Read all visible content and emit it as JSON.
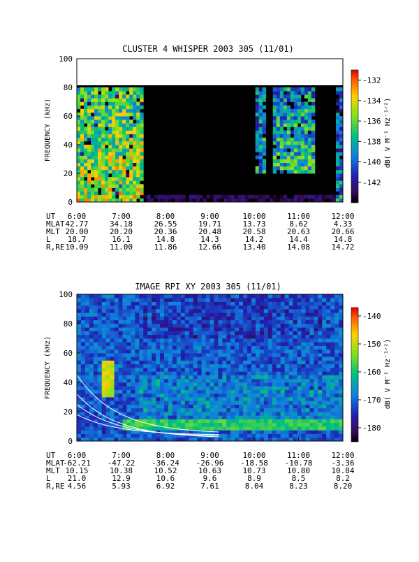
{
  "panels": [
    {
      "title": "CLUSTER 4 WHISPER 2003 305 (11/01)",
      "ylabel": "FREQUENCY (kHz)",
      "cbar_label": "dB( V M⁻¹ Hz⁻¹ᐟ²)",
      "cbar_ticks": [
        "-132",
        "-134",
        "-136",
        "-138",
        "-140",
        "-142"
      ],
      "y_ticks": [
        "0",
        "20",
        "40",
        "60",
        "80",
        "100"
      ],
      "ephemeris": {
        "rows": [
          {
            "label": "UT",
            "values": [
              "6:00",
              "7:00",
              "8:00",
              "9:00",
              "10:00",
              "11:00",
              "12:00"
            ]
          },
          {
            "label": "MLAT",
            "values": [
              "42.77",
              "34.18",
              "26.55",
              "19.71",
              "13.73",
              "8.62",
              "4.33"
            ]
          },
          {
            "label": "MLT",
            "values": [
              "20.00",
              "20.20",
              "20.36",
              "20.48",
              "20.58",
              "20.63",
              "20.66"
            ]
          },
          {
            "label": "L",
            "values": [
              "18.7",
              "16.1",
              "14.8",
              "14.3",
              "14.2",
              "14.4",
              "14.8"
            ]
          },
          {
            "label": "R,RE",
            "values": [
              "10.09",
              "11.00",
              "11.86",
              "12.66",
              "13.40",
              "14.08",
              "14.72"
            ]
          }
        ]
      }
    },
    {
      "title": "IMAGE RPI XY 2003 305 (11/01)",
      "ylabel": "FREQUENCY (kHz)",
      "cbar_label": "dB( V M⁻¹ Hz⁻¹ᐟ²)",
      "cbar_ticks": [
        "-140",
        "-150",
        "-160",
        "-170",
        "-180"
      ],
      "y_ticks": [
        "0",
        "20",
        "40",
        "60",
        "80",
        "100"
      ],
      "ephemeris": {
        "rows": [
          {
            "label": "UT",
            "values": [
              "6:00",
              "7:00",
              "8:00",
              "9:00",
              "10:00",
              "11:00",
              "12:00"
            ]
          },
          {
            "label": "MLAT",
            "values": [
              "-62.21",
              "-47.22",
              "-36.24",
              "-26.96",
              "-18.58",
              "-10.78",
              "-3.36"
            ]
          },
          {
            "label": "MLT",
            "values": [
              "10.15",
              "10.38",
              "10.52",
              "10.63",
              "10.73",
              "10.80",
              "10.84"
            ]
          },
          {
            "label": "L",
            "values": [
              "21.0",
              "12.9",
              "10.6",
              "9.6",
              "8.9",
              "8.5",
              "8.2"
            ]
          },
          {
            "label": "R,RE",
            "values": [
              "4.56",
              "5.93",
              "6.92",
              "7.61",
              "8.04",
              "8.23",
              "8.20"
            ]
          }
        ]
      }
    }
  ],
  "chart_data": [
    {
      "type": "heatmap",
      "title": "CLUSTER 4 WHISPER 2003 305 (11/01)",
      "ylabel": "FREQUENCY (kHz)",
      "x_ticks": [
        "6:00",
        "7:00",
        "8:00",
        "9:00",
        "10:00",
        "11:00",
        "12:00"
      ],
      "x_range_hours_ut": [
        6,
        12
      ],
      "y_range_khz": [
        0,
        100
      ],
      "data_max_frequency_khz": 80,
      "colorbar_range_db": [
        -144,
        -131
      ],
      "colorscale": "rainbow (black low, red high)",
      "features": [
        {
          "ut_start": "6:00",
          "ut_end": "7:30",
          "freq_khz": [
            0,
            80
          ],
          "level_db": -132,
          "desc": "intense broadband emission"
        },
        {
          "ut_start": "10:00",
          "ut_end": "10:15",
          "freq_khz": [
            20,
            80
          ],
          "level_db": -135
        },
        {
          "ut_start": "10:25",
          "ut_end": "11:20",
          "freq_khz": [
            20,
            80
          ],
          "level_db": -134
        },
        {
          "ut_start": "11:50",
          "ut_end": "12:00",
          "freq_khz": [
            0,
            80
          ],
          "level_db": -136
        }
      ]
    },
    {
      "type": "heatmap",
      "title": "IMAGE RPI XY 2003 305 (11/01)",
      "ylabel": "FREQUENCY (kHz)",
      "x_ticks": [
        "6:00",
        "7:00",
        "8:00",
        "9:00",
        "10:00",
        "11:00",
        "12:00"
      ],
      "x_range_hours_ut": [
        6,
        12
      ],
      "y_range_khz": [
        0,
        100
      ],
      "colorbar_range_db": [
        -185,
        -137
      ],
      "colorscale": "rainbow (black low, red high)",
      "features": [
        {
          "ut_start": "6:35",
          "ut_end": "6:50",
          "freq_khz": [
            30,
            55
          ],
          "level_db": -145,
          "desc": "intense band"
        },
        {
          "ut_start": "7:00",
          "ut_end": "12:00",
          "freq_khz": [
            8,
            16
          ],
          "level_db": -155,
          "desc": "narrow band near 12 kHz"
        },
        {
          "ut_start": "6:00",
          "ut_end": "8:30",
          "freq_khz": [
            0,
            30
          ],
          "level_db": -175,
          "desc": "white reference curves"
        }
      ]
    }
  ]
}
